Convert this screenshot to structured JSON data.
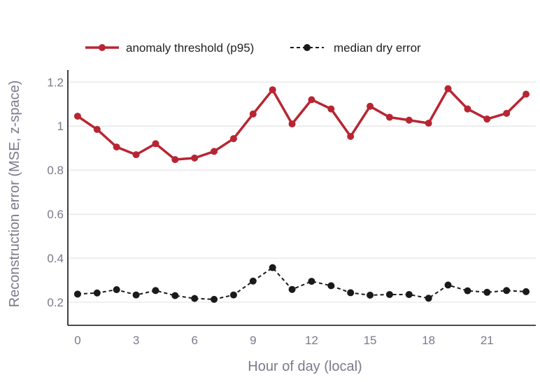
{
  "chart_data": {
    "type": "line",
    "xlabel": "Hour of day (local)",
    "ylabel": "Reconstruction error (MSE, z-space)",
    "xlim": [
      -0.5,
      23.5
    ],
    "ylim": [
      0.095,
      1.255
    ],
    "x_ticks": [
      0,
      3,
      6,
      9,
      12,
      15,
      18,
      21
    ],
    "x_tick_labels": [
      "0",
      "3",
      "6",
      "9",
      "12",
      "15",
      "18",
      "21"
    ],
    "y_ticks": [
      0.2,
      0.4,
      0.6,
      0.8,
      1.0,
      1.2
    ],
    "y_tick_labels": [
      "0.2",
      "0.4",
      "0.6",
      "0.8",
      "1",
      "1.2"
    ],
    "grid": "horizontal",
    "legend_position": "top-left",
    "x": [
      0,
      1,
      2,
      3,
      4,
      5,
      6,
      7,
      8,
      9,
      10,
      11,
      12,
      13,
      14,
      15,
      16,
      17,
      18,
      19,
      20,
      21,
      22,
      23
    ],
    "series": [
      {
        "name": "anomaly threshold (p95)",
        "color": "#b82532",
        "style": "solid",
        "values": [
          1.045,
          0.985,
          0.905,
          0.87,
          0.92,
          0.848,
          0.855,
          0.885,
          0.943,
          1.055,
          1.165,
          1.01,
          1.12,
          1.078,
          0.953,
          1.09,
          1.04,
          1.027,
          1.013,
          1.17,
          1.078,
          1.032,
          1.058,
          1.145
        ]
      },
      {
        "name": "median dry error",
        "color": "#1a1a1a",
        "style": "dashed",
        "values": [
          0.237,
          0.242,
          0.257,
          0.233,
          0.253,
          0.23,
          0.217,
          0.213,
          0.233,
          0.296,
          0.357,
          0.258,
          0.295,
          0.275,
          0.243,
          0.232,
          0.235,
          0.235,
          0.218,
          0.278,
          0.252,
          0.245,
          0.253,
          0.248
        ]
      }
    ]
  }
}
